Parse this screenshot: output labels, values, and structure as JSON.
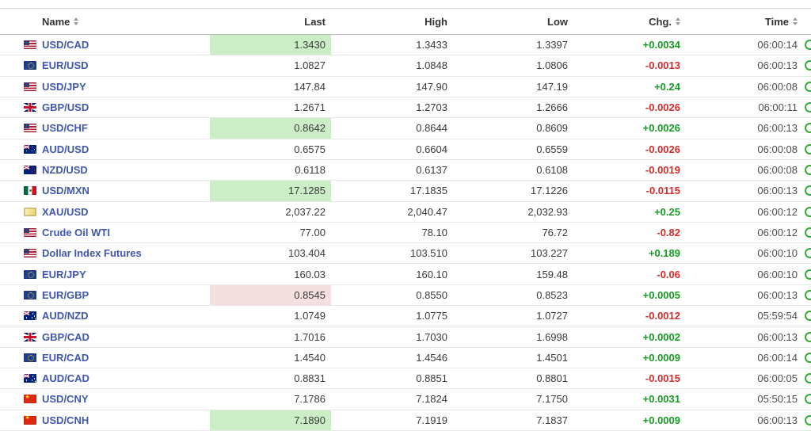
{
  "colors": {
    "up_text": "#169b22",
    "down_text": "#d42a2a",
    "up_highlight": "#cbeec6",
    "down_highlight": "#f5e0e0",
    "link_blue": "#3f57ad"
  },
  "table": {
    "columns": [
      {
        "label": "Name",
        "sortable": true,
        "align": "left"
      },
      {
        "label": "Last",
        "sortable": false,
        "align": "right"
      },
      {
        "label": "High",
        "sortable": false,
        "align": "right"
      },
      {
        "label": "Low",
        "sortable": false,
        "align": "right"
      },
      {
        "label": "Chg.",
        "sortable": true,
        "align": "right"
      },
      {
        "label": "Time",
        "sortable": true,
        "align": "right"
      }
    ],
    "status_icon": "market-open-clock-icon",
    "rows": [
      {
        "flag": "us",
        "name": "USD/CAD",
        "last": "1.3430",
        "high": "1.3433",
        "low": "1.3397",
        "chg": "+0.0034",
        "direction": "up",
        "time": "06:00:14",
        "last_highlight": "up"
      },
      {
        "flag": "eu",
        "name": "EUR/USD",
        "last": "1.0827",
        "high": "1.0848",
        "low": "1.0806",
        "chg": "-0.0013",
        "direction": "down",
        "time": "06:00:13",
        "last_highlight": "none"
      },
      {
        "flag": "us",
        "name": "USD/JPY",
        "last": "147.84",
        "high": "147.90",
        "low": "147.19",
        "chg": "+0.24",
        "direction": "up",
        "time": "06:00:08",
        "last_highlight": "none"
      },
      {
        "flag": "gb",
        "name": "GBP/USD",
        "last": "1.2671",
        "high": "1.2703",
        "low": "1.2666",
        "chg": "-0.0026",
        "direction": "down",
        "time": "06:00:11",
        "last_highlight": "none"
      },
      {
        "flag": "us",
        "name": "USD/CHF",
        "last": "0.8642",
        "high": "0.8644",
        "low": "0.8609",
        "chg": "+0.0026",
        "direction": "up",
        "time": "06:00:13",
        "last_highlight": "up"
      },
      {
        "flag": "au",
        "name": "AUD/USD",
        "last": "0.6575",
        "high": "0.6604",
        "low": "0.6559",
        "chg": "-0.0026",
        "direction": "down",
        "time": "06:00:08",
        "last_highlight": "none"
      },
      {
        "flag": "nz",
        "name": "NZD/USD",
        "last": "0.6118",
        "high": "0.6137",
        "low": "0.6108",
        "chg": "-0.0019",
        "direction": "down",
        "time": "06:00:08",
        "last_highlight": "none"
      },
      {
        "flag": "mx",
        "name": "USD/MXN",
        "last": "17.1285",
        "high": "17.1835",
        "low": "17.1226",
        "chg": "-0.0115",
        "direction": "down",
        "time": "06:00:13",
        "last_highlight": "up"
      },
      {
        "flag": "gold",
        "name": "XAU/USD",
        "last": "2,037.22",
        "high": "2,040.47",
        "low": "2,032.93",
        "chg": "+0.25",
        "direction": "up",
        "time": "06:00:12",
        "last_highlight": "none"
      },
      {
        "flag": "us",
        "name": "Crude Oil WTI",
        "last": "77.00",
        "high": "78.10",
        "low": "76.72",
        "chg": "-0.82",
        "direction": "down",
        "time": "06:00:12",
        "last_highlight": "none"
      },
      {
        "flag": "us",
        "name": "Dollar Index Futures",
        "last": "103.404",
        "high": "103.510",
        "low": "103.227",
        "chg": "+0.189",
        "direction": "up",
        "time": "06:00:10",
        "last_highlight": "none"
      },
      {
        "flag": "eu",
        "name": "EUR/JPY",
        "last": "160.03",
        "high": "160.10",
        "low": "159.48",
        "chg": "-0.06",
        "direction": "down",
        "time": "06:00:10",
        "last_highlight": "none"
      },
      {
        "flag": "eu",
        "name": "EUR/GBP",
        "last": "0.8545",
        "high": "0.8550",
        "low": "0.8523",
        "chg": "+0.0005",
        "direction": "up",
        "time": "06:00:13",
        "last_highlight": "down"
      },
      {
        "flag": "au",
        "name": "AUD/NZD",
        "last": "1.0749",
        "high": "1.0775",
        "low": "1.0727",
        "chg": "-0.0012",
        "direction": "down",
        "time": "05:59:54",
        "last_highlight": "none"
      },
      {
        "flag": "gb",
        "name": "GBP/CAD",
        "last": "1.7016",
        "high": "1.7030",
        "low": "1.6998",
        "chg": "+0.0002",
        "direction": "up",
        "time": "06:00:13",
        "last_highlight": "none"
      },
      {
        "flag": "eu",
        "name": "EUR/CAD",
        "last": "1.4540",
        "high": "1.4546",
        "low": "1.4501",
        "chg": "+0.0009",
        "direction": "up",
        "time": "06:00:14",
        "last_highlight": "none"
      },
      {
        "flag": "au",
        "name": "AUD/CAD",
        "last": "0.8831",
        "high": "0.8851",
        "low": "0.8801",
        "chg": "-0.0015",
        "direction": "down",
        "time": "06:00:05",
        "last_highlight": "none"
      },
      {
        "flag": "cn",
        "name": "USD/CNY",
        "last": "7.1786",
        "high": "7.1824",
        "low": "7.1750",
        "chg": "+0.0031",
        "direction": "up",
        "time": "05:50:15",
        "last_highlight": "none"
      },
      {
        "flag": "cn",
        "name": "USD/CNH",
        "last": "7.1890",
        "high": "7.1919",
        "low": "7.1837",
        "chg": "+0.0009",
        "direction": "up",
        "time": "06:00:13",
        "last_highlight": "up"
      }
    ]
  }
}
